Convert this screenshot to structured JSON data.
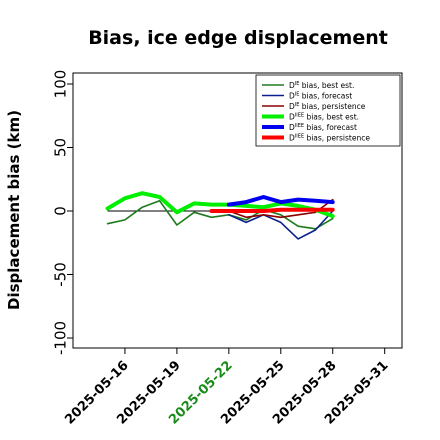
{
  "chart_data": {
    "type": "line",
    "title": "Bias, ice edge displacement",
    "xlabel": "",
    "ylabel": "Displacement bias (km)",
    "ylim": [
      -100,
      100
    ],
    "yticks": [
      -100,
      -50,
      0,
      50,
      100
    ],
    "xlim": [
      "2025-05-13",
      "2025-06-01"
    ],
    "xticks": [
      "2025-05-16",
      "2025-05-19",
      "2025-05-22",
      "2025-05-25",
      "2025-05-28",
      "2025-05-31"
    ],
    "highlight_tick": "2025-05-22",
    "highlight_color": "#1a8a1a",
    "reference_line": 0,
    "legend_position": "top-right",
    "series": [
      {
        "name": "D bias, best est.",
        "sup": "IE",
        "color": "#1e7a1e",
        "width": 1.6,
        "x": [
          "2025-05-15",
          "2025-05-16",
          "2025-05-17",
          "2025-05-18",
          "2025-05-19",
          "2025-05-20",
          "2025-05-21",
          "2025-05-22",
          "2025-05-23",
          "2025-05-24",
          "2025-05-25",
          "2025-05-26",
          "2025-05-27",
          "2025-05-28"
        ],
        "y": [
          -10,
          -7,
          3,
          8,
          -11,
          -1,
          -5,
          -3,
          -7,
          1,
          -3,
          -12,
          -14,
          -6
        ]
      },
      {
        "name": "D bias, forecast",
        "sup": "IE",
        "color": "#0b1f8a",
        "width": 1.6,
        "x": [
          "2025-05-22",
          "2025-05-23",
          "2025-05-24",
          "2025-05-25",
          "2025-05-26",
          "2025-05-27",
          "2025-05-28"
        ],
        "y": [
          -3,
          -9,
          -3,
          -9,
          -22,
          -15,
          0
        ]
      },
      {
        "name": "D bias, persistence",
        "sup": "IE",
        "color": "#8b0000",
        "width": 1.6,
        "x": [
          "2025-05-21",
          "2025-05-22",
          "2025-05-23",
          "2025-05-24",
          "2025-05-25",
          "2025-05-26",
          "2025-05-27",
          "2025-05-28"
        ],
        "y": [
          0,
          0,
          -5,
          -3,
          -5,
          -3,
          -1,
          9
        ]
      },
      {
        "name": "D bias, best est.",
        "sup": "IIEE",
        "color": "#00ee00",
        "width": 4,
        "x": [
          "2025-05-15",
          "2025-05-16",
          "2025-05-17",
          "2025-05-18",
          "2025-05-19",
          "2025-05-20",
          "2025-05-21",
          "2025-05-22",
          "2025-05-23",
          "2025-05-24",
          "2025-05-25",
          "2025-05-26",
          "2025-05-27",
          "2025-05-28"
        ],
        "y": [
          2,
          10,
          14,
          11,
          -1,
          6,
          5,
          5,
          4,
          3,
          6,
          4,
          1,
          -4
        ]
      },
      {
        "name": "D bias, forecast",
        "sup": "IIEE",
        "color": "#0000ee",
        "width": 4,
        "x": [
          "2025-05-22",
          "2025-05-23",
          "2025-05-24",
          "2025-05-25",
          "2025-05-26",
          "2025-05-27",
          "2025-05-28"
        ],
        "y": [
          5,
          7,
          11,
          7,
          9,
          8,
          7
        ]
      },
      {
        "name": "D bias, persistence",
        "sup": "IIEE",
        "color": "#ff0000",
        "width": 4,
        "x": [
          "2025-05-21",
          "2025-05-22",
          "2025-05-23",
          "2025-05-24",
          "2025-05-25",
          "2025-05-26",
          "2025-05-27",
          "2025-05-28"
        ],
        "y": [
          0,
          0,
          0,
          0,
          1,
          1,
          1,
          1
        ]
      }
    ]
  }
}
